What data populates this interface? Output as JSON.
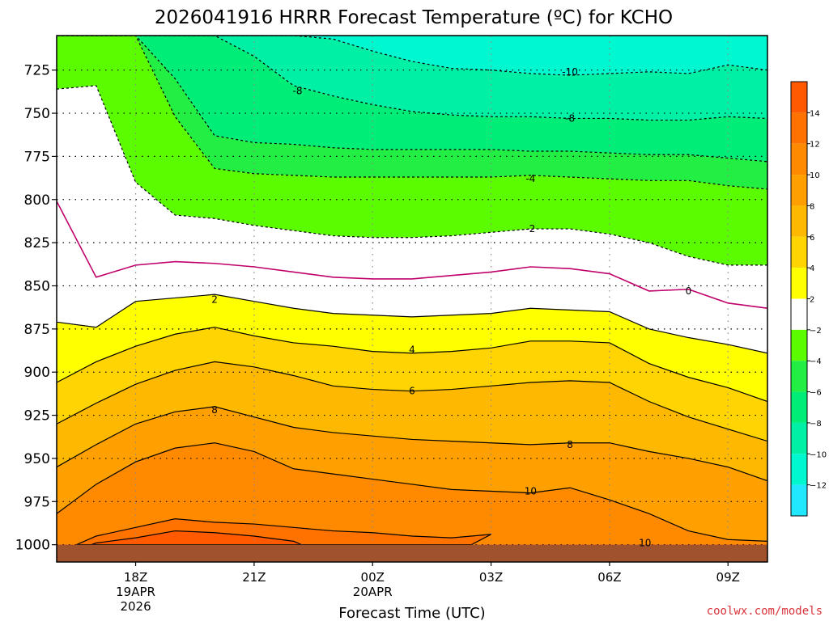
{
  "chart_data": {
    "type": "contour",
    "title": "2026041916 HRRR Forecast Temperature (ºC) for KCHO",
    "xlabel": "Forecast Time (UTC)",
    "ylabel": "",
    "y_scale": "pressure (inverted, hPa)",
    "ylim": [
      1010,
      705
    ],
    "xlim": [
      "2026-04-19 16Z",
      "2026-04-20 10Z"
    ],
    "y_ticks": [
      "725",
      "750",
      "775",
      "800",
      "825",
      "850",
      "875",
      "900",
      "925",
      "950",
      "975",
      "1000"
    ],
    "x_ticks": [
      {
        "label": "18Z",
        "sub1": "19APR",
        "sub2": "2026",
        "hour": 18
      },
      {
        "label": "21Z",
        "sub1": "",
        "sub2": "",
        "hour": 21
      },
      {
        "label": "00Z",
        "sub1": "20APR",
        "sub2": "",
        "hour": 24
      },
      {
        "label": "03Z",
        "sub1": "",
        "sub2": "",
        "hour": 27
      },
      {
        "label": "06Z",
        "sub1": "",
        "sub2": "",
        "hour": 30
      },
      {
        "label": "09Z",
        "sub1": "",
        "sub2": "",
        "hour": 33
      }
    ],
    "grid": true,
    "x_hours": [
      16,
      17,
      18,
      19,
      20,
      21,
      22,
      23,
      24,
      25,
      26,
      27,
      28,
      29,
      30,
      31,
      32,
      33,
      34
    ],
    "contours": [
      {
        "level": -10,
        "pressures": [
          705,
          705,
          705,
          705,
          705,
          705,
          705,
          707,
          714,
          720,
          724,
          725,
          727,
          728,
          727,
          726,
          727,
          722,
          725
        ]
      },
      {
        "level": -8,
        "pressures": [
          705,
          705,
          705,
          705,
          705,
          717,
          734,
          740,
          745,
          749,
          751,
          752,
          752,
          753,
          753,
          754,
          754,
          752,
          753
        ]
      },
      {
        "level": -6,
        "pressures": [
          705,
          705,
          705,
          730,
          763,
          767,
          768,
          770,
          771,
          771,
          771,
          771,
          772,
          772,
          773,
          774,
          774,
          776,
          778
        ]
      },
      {
        "level": -4,
        "pressures": [
          705,
          705,
          705,
          752,
          782,
          785,
          786,
          787,
          787,
          787,
          787,
          787,
          786,
          787,
          788,
          789,
          789,
          792,
          794
        ]
      },
      {
        "level": -2,
        "pressures": [
          736,
          734,
          790,
          809,
          811,
          815,
          818,
          821,
          822,
          822,
          821,
          819,
          817,
          817,
          820,
          825,
          833,
          838,
          838
        ]
      },
      {
        "level": 0,
        "pressures": [
          801,
          845,
          838,
          836,
          837,
          839,
          842,
          845,
          846,
          846,
          844,
          842,
          839,
          840,
          843,
          853,
          852,
          860,
          863
        ]
      },
      {
        "level": 2,
        "pressures": [
          871,
          874,
          859,
          857,
          855,
          859,
          863,
          866,
          867,
          868,
          867,
          866,
          863,
          864,
          865,
          875,
          880,
          884,
          889
        ]
      },
      {
        "level": 4,
        "pressures": [
          906,
          894,
          885,
          878,
          874,
          879,
          883,
          885,
          888,
          889,
          888,
          886,
          882,
          882,
          883,
          895,
          903,
          909,
          917
        ]
      },
      {
        "level": 6,
        "pressures": [
          930,
          918,
          907,
          899,
          894,
          897,
          902,
          908,
          910,
          911,
          910,
          908,
          906,
          905,
          906,
          917,
          926,
          933,
          940
        ]
      },
      {
        "level": 8,
        "pressures": [
          955,
          942,
          930,
          923,
          920,
          926,
          932,
          935,
          937,
          939,
          940,
          941,
          942,
          941,
          941,
          946,
          950,
          955,
          963
        ]
      },
      {
        "level": 10,
        "pressures": [
          982,
          965,
          952,
          944,
          941,
          946,
          956,
          959,
          962,
          965,
          968,
          969,
          970,
          967,
          974,
          982,
          992,
          997,
          998
        ]
      }
    ],
    "contour_10_closed": [
      [
        16.5,
        1000
      ],
      [
        17,
        995
      ],
      [
        18,
        990
      ],
      [
        19,
        985
      ],
      [
        20,
        987
      ],
      [
        21,
        988
      ],
      [
        22,
        990
      ],
      [
        23,
        992
      ],
      [
        24,
        993
      ],
      [
        25,
        995
      ],
      [
        26,
        996
      ],
      [
        27,
        994
      ],
      [
        26.5,
        1000
      ]
    ],
    "contour_12_closed": [
      [
        16.5,
        1003
      ],
      [
        17,
        999
      ],
      [
        18,
        996
      ],
      [
        19,
        992
      ],
      [
        20,
        993
      ],
      [
        21,
        995
      ],
      [
        22,
        998
      ],
      [
        22.5,
        1003
      ]
    ],
    "contour_labels": [
      {
        "text": "-8",
        "hour": 22.1,
        "pressure": 737
      },
      {
        "text": "-10",
        "hour": 29.0,
        "pressure": 726
      },
      {
        "text": "-8",
        "hour": 29.0,
        "pressure": 753
      },
      {
        "text": "-4",
        "hour": 28.0,
        "pressure": 788
      },
      {
        "text": "-2",
        "hour": 28.0,
        "pressure": 817
      },
      {
        "text": "0",
        "hour": 32.0,
        "pressure": 853
      },
      {
        "text": "2",
        "hour": 20.0,
        "pressure": 858
      },
      {
        "text": "4",
        "hour": 25.0,
        "pressure": 887
      },
      {
        "text": "6",
        "hour": 25.0,
        "pressure": 911
      },
      {
        "text": "8",
        "hour": 20.0,
        "pressure": 922
      },
      {
        "text": "8",
        "hour": 29.0,
        "pressure": 942
      },
      {
        "text": "10",
        "hour": 28.0,
        "pressure": 969
      },
      {
        "text": "10",
        "hour": 30.9,
        "pressure": 999
      }
    ],
    "colorbar": {
      "labels": [
        "14",
        "12",
        "10",
        "8",
        "6",
        "4",
        "2",
        "−2",
        "−4",
        "−6",
        "−8",
        "−10",
        "−12"
      ],
      "bins": [
        {
          "low": 14,
          "high": 16,
          "color": "#ff5a00"
        },
        {
          "low": 12,
          "high": 14,
          "color": "#ff7200"
        },
        {
          "low": 10,
          "high": 12,
          "color": "#ff8a00"
        },
        {
          "low": 8,
          "high": 10,
          "color": "#ffa000"
        },
        {
          "low": 6,
          "high": 8,
          "color": "#ffb800"
        },
        {
          "low": 4,
          "high": 6,
          "color": "#ffd400"
        },
        {
          "low": 2,
          "high": 4,
          "color": "#ffff00"
        },
        {
          "low": -2,
          "high": 2,
          "color": "#ffffff"
        },
        {
          "low": -4,
          "high": -2,
          "color": "#5cfc00"
        },
        {
          "low": -6,
          "high": -4,
          "color": "#22ee44"
        },
        {
          "low": -8,
          "high": -6,
          "color": "#00ee77"
        },
        {
          "low": -10,
          "high": -8,
          "color": "#00f0a6"
        },
        {
          "low": -12,
          "high": -10,
          "color": "#00f8d0"
        },
        {
          "low": -14,
          "high": -12,
          "color": "#22e8ff"
        }
      ]
    },
    "ground_color": "#a0522d"
  },
  "credit": "coolwx.com/models"
}
